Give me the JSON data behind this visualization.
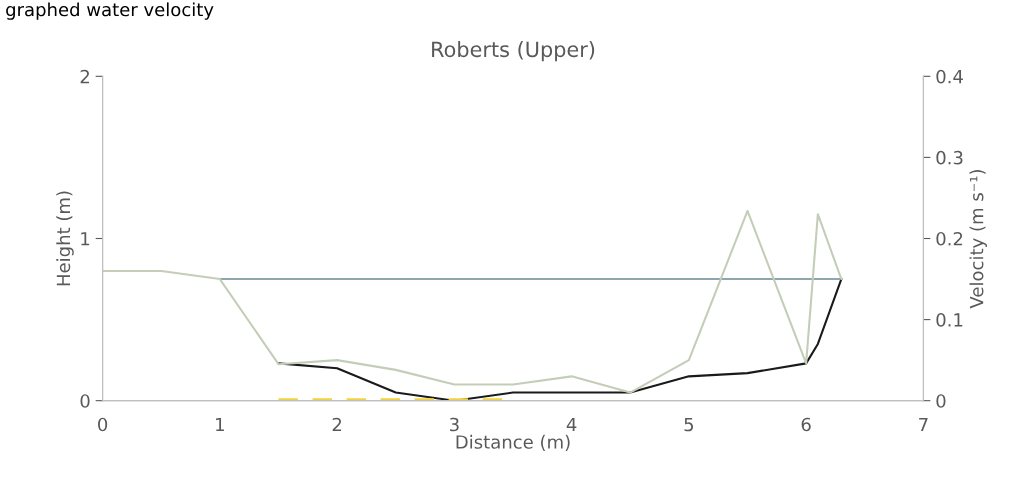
{
  "chart_data": {
    "type": "line",
    "title": "Roberts (Upper)",
    "xlabel": "Distance (m)",
    "ylabel": "Height (m)",
    "y2label": "Velocity (m s⁻¹)",
    "annotations": [
      "graphed water velocity"
    ],
    "xlim": [
      0,
      7
    ],
    "xticks": [
      0,
      1,
      2,
      3,
      4,
      5,
      6,
      7
    ],
    "ylim": [
      0,
      2
    ],
    "yticks": [
      0,
      1,
      2
    ],
    "y2lim": [
      0,
      0.4
    ],
    "y2ticks": [
      0,
      0.1,
      0.2,
      0.3,
      0.4
    ],
    "grid": false,
    "marker": "none",
    "series": [
      {
        "color": "#8fa5b0",
        "x": [
          1,
          6.3
        ],
        "values": [
          0.75,
          0.75
        ]
      },
      {
        "color": "#c4cdb8",
        "axis": "y2",
        "x": [
          0,
          0.5,
          1,
          1.5,
          2,
          2.5,
          3,
          3.5,
          4,
          4.5,
          5,
          5.5,
          6,
          6.1,
          6.3
        ],
        "values": [
          0.16,
          0.16,
          0.15,
          0.045,
          0.05,
          0.038,
          0.02,
          0.02,
          0.03,
          0.01,
          0.05,
          0.234,
          0.046,
          0.23,
          0.15
        ]
      },
      {
        "color": "#1a1a1a",
        "x": [
          1.5,
          2,
          2.5,
          3,
          3.5,
          4,
          4.5,
          5,
          5.5,
          6,
          6.1,
          6.3
        ],
        "values": [
          0.23,
          0.2,
          0.05,
          0.0,
          0.05,
          0.05,
          0.05,
          0.15,
          0.17,
          0.23,
          0.35,
          0.75
        ]
      },
      {
        "color": "#f2d33c",
        "line_style": "dashed",
        "x": [
          1.5,
          3.5
        ],
        "values": [
          0,
          0
        ]
      }
    ]
  }
}
